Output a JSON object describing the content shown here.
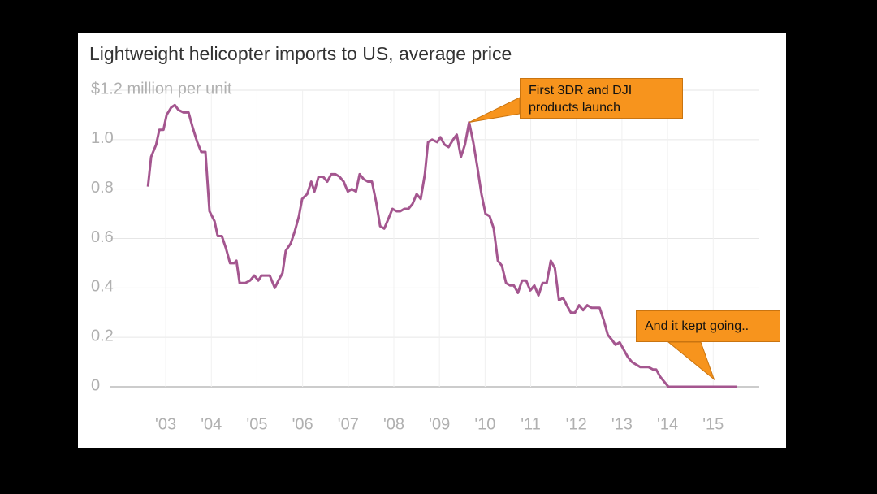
{
  "chart_data": {
    "type": "line",
    "title": "Lightweight helicopter imports to US, average price",
    "x": [
      2002.61,
      2002.68,
      2002.79,
      2002.86,
      2002.95,
      2003.02,
      2003.12,
      2003.2,
      2003.28,
      2003.39,
      2003.5,
      2003.59,
      2003.69,
      2003.78,
      2003.87,
      2003.96,
      2004.07,
      2004.14,
      2004.23,
      2004.32,
      2004.41,
      2004.5,
      2004.55,
      2004.62,
      2004.74,
      2004.85,
      2004.94,
      2005.03,
      2005.1,
      2005.28,
      2005.39,
      2005.47,
      2005.56,
      2005.63,
      2005.74,
      2005.83,
      2005.92,
      2005.99,
      2006.1,
      2006.19,
      2006.26,
      2006.35,
      2006.45,
      2006.54,
      2006.63,
      2006.72,
      2006.81,
      2006.9,
      2006.99,
      2007.08,
      2007.17,
      2007.25,
      2007.34,
      2007.43,
      2007.52,
      2007.61,
      2007.7,
      2007.79,
      2007.88,
      2007.97,
      2008.06,
      2008.14,
      2008.23,
      2008.32,
      2008.41,
      2008.5,
      2008.59,
      2008.68,
      2008.75,
      2008.84,
      2008.95,
      2009.02,
      2009.11,
      2009.2,
      2009.3,
      2009.38,
      2009.47,
      2009.56,
      2009.65,
      2009.74,
      2009.83,
      2009.92,
      2010.01,
      2010.1,
      2010.19,
      2010.28,
      2010.37,
      2010.46,
      2010.55,
      2010.63,
      2010.72,
      2010.81,
      2010.9,
      2010.99,
      2011.08,
      2011.17,
      2011.26,
      2011.35,
      2011.44,
      2011.53,
      2011.62,
      2011.71,
      2011.79,
      2011.88,
      2011.97,
      2012.06,
      2012.15,
      2012.24,
      2012.33,
      2012.42,
      2012.51,
      2012.6,
      2012.69,
      2012.78,
      2012.86,
      2012.95,
      2013.04,
      2013.13,
      2013.22,
      2013.31,
      2013.4,
      2013.49,
      2013.58,
      2013.68,
      2013.75,
      2013.84,
      2013.93,
      2014.02,
      2015.53
    ],
    "series": [
      {
        "color": "#a4568f",
        "values": [
          0.81,
          0.93,
          0.98,
          1.04,
          1.04,
          1.1,
          1.13,
          1.14,
          1.12,
          1.11,
          1.11,
          1.05,
          0.99,
          0.95,
          0.95,
          0.71,
          0.67,
          0.61,
          0.61,
          0.56,
          0.5,
          0.5,
          0.51,
          0.42,
          0.42,
          0.43,
          0.45,
          0.43,
          0.45,
          0.45,
          0.4,
          0.43,
          0.46,
          0.55,
          0.58,
          0.63,
          0.69,
          0.76,
          0.78,
          0.83,
          0.79,
          0.85,
          0.85,
          0.83,
          0.86,
          0.86,
          0.85,
          0.83,
          0.79,
          0.8,
          0.79,
          0.86,
          0.84,
          0.83,
          0.83,
          0.75,
          0.65,
          0.64,
          0.68,
          0.72,
          0.71,
          0.71,
          0.72,
          0.72,
          0.74,
          0.78,
          0.76,
          0.86,
          0.99,
          1.0,
          0.99,
          1.01,
          0.98,
          0.97,
          1.0,
          1.02,
          0.93,
          0.98,
          1.07,
          0.99,
          0.89,
          0.78,
          0.7,
          0.69,
          0.64,
          0.51,
          0.49,
          0.42,
          0.41,
          0.41,
          0.38,
          0.43,
          0.43,
          0.39,
          0.41,
          0.37,
          0.42,
          0.42,
          0.51,
          0.48,
          0.35,
          0.36,
          0.33,
          0.3,
          0.3,
          0.33,
          0.31,
          0.33,
          0.32,
          0.32,
          0.32,
          0.27,
          0.21,
          0.19,
          0.17,
          0.18,
          0.15,
          0.12,
          0.1,
          0.09,
          0.08,
          0.08,
          0.08,
          0.07,
          0.07,
          0.04,
          0.02,
          0,
          0
        ]
      }
    ],
    "xlim": [
      2001.77,
      2016.01
    ],
    "xticks": [
      {
        "value": 2003,
        "label": "'03"
      },
      {
        "value": 2004,
        "label": "'04"
      },
      {
        "value": 2005,
        "label": "'05"
      },
      {
        "value": 2006,
        "label": "'06"
      },
      {
        "value": 2007,
        "label": "'07"
      },
      {
        "value": 2008,
        "label": "'08"
      },
      {
        "value": 2009,
        "label": "'09"
      },
      {
        "value": 2010,
        "label": "'10"
      },
      {
        "value": 2011,
        "label": "'11"
      },
      {
        "value": 2012,
        "label": "'12"
      },
      {
        "value": 2013,
        "label": "'13"
      },
      {
        "value": 2014,
        "label": "'14"
      },
      {
        "value": 2015,
        "label": "'15"
      }
    ],
    "ylim": [
      0,
      1.2
    ],
    "yticks": [
      0,
      0.2,
      0.4,
      0.6,
      0.8,
      {
        "value": 1,
        "label": "1.0"
      },
      {
        "value": 1.2,
        "label": "$1.2 million per unit"
      }
    ],
    "grid": true,
    "annotations": [
      {
        "text": "First 3DR and DJI products launch",
        "x": 2009.65,
        "y": 1.07
      },
      {
        "text": "And it kept going..",
        "x": 2015.02,
        "y": 0.03
      }
    ]
  }
}
